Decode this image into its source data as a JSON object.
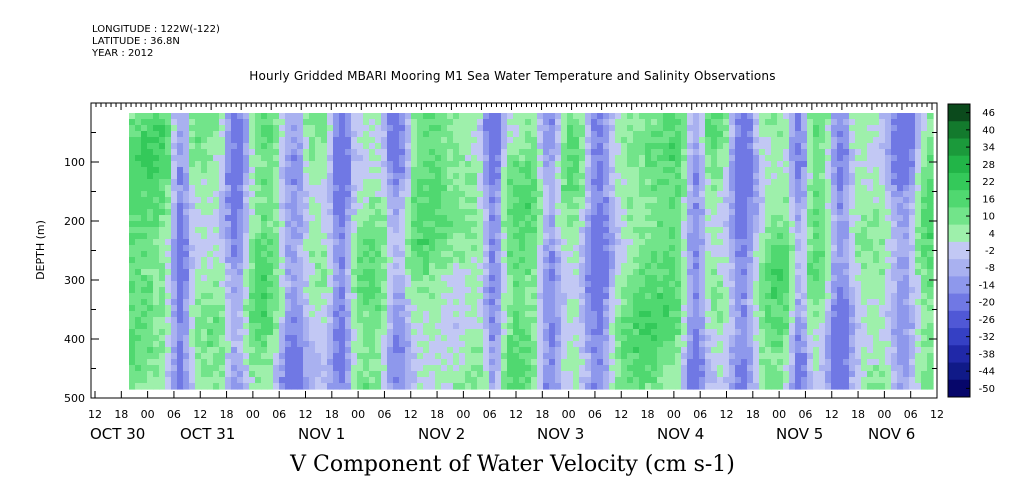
{
  "meta": {
    "longitude": "LONGITUDE : 122W(-122)",
    "latitude": "LATITUDE : 36.8N",
    "year": "YEAR : 2012"
  },
  "title": "Hourly Gridded MBARI Mooring M1 Sea Water Temperature and Salinity Observations",
  "xlabel": "V Component of Water Velocity (cm s-1)",
  "chart_data": {
    "type": "heatmap",
    "title": "Hourly Gridded MBARI Mooring M1 Sea Water Temperature and Salinity Observations",
    "ylabel": "DEPTH (m)",
    "xlabel": "V Component of Water Velocity (cm s-1)",
    "ylim": [
      500,
      0
    ],
    "y_ticks": [
      "100",
      "200",
      "300",
      "400",
      "500"
    ],
    "x_hour_ticks": [
      "12",
      "18",
      "00",
      "06",
      "12",
      "18",
      "00",
      "06",
      "12",
      "18",
      "00",
      "06",
      "12",
      "18",
      "00",
      "06",
      "12",
      "18",
      "00",
      "06",
      "12",
      "18",
      "00",
      "06",
      "12",
      "18",
      "00",
      "06",
      "12",
      "18",
      "00",
      "06",
      "12"
    ],
    "x_day_labels": [
      "OCT 30",
      "OCT 31",
      "NOV 1",
      "NOV 2",
      "NOV 3",
      "NOV 4",
      "NOV 5",
      "NOV 6"
    ],
    "colorbar": {
      "levels": [
        "46",
        "40",
        "34",
        "28",
        "22",
        "16",
        "10",
        "4",
        "-2",
        "-8",
        "-14",
        "-20",
        "-26",
        "-32",
        "-38",
        "-44",
        "-50"
      ],
      "colors": [
        "#0b4a1c",
        "#137a2d",
        "#1b9a3b",
        "#22b548",
        "#34c95a",
        "#50d870",
        "#72e48a",
        "#9ef0ab",
        "#c2c8f4",
        "#a9b1f0",
        "#8e98ec",
        "#7078e4",
        "#5058d6",
        "#3540c4",
        "#2028a8",
        "#101a88",
        "#06066a"
      ]
    }
  }
}
